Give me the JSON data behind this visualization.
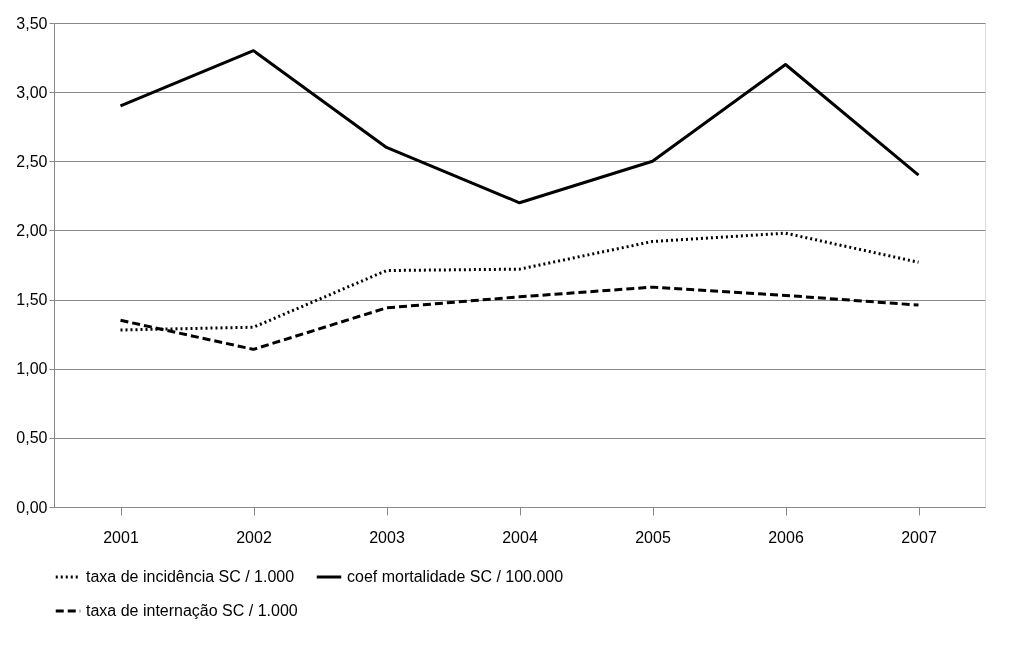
{
  "chart_data": {
    "type": "line",
    "categories": [
      "2001",
      "2002",
      "2003",
      "2004",
      "2005",
      "2006",
      "2007"
    ],
    "series": [
      {
        "name": "taxa de incidência SC / 1.000",
        "color": "#000000",
        "line_style": "dotted",
        "values": [
          1.28,
          1.3,
          1.71,
          1.72,
          1.92,
          1.98,
          1.77
        ]
      },
      {
        "name": "coef mortalidade  SC / 100.000",
        "color": "#000000",
        "line_style": "solid",
        "values": [
          2.9,
          3.3,
          2.6,
          2.2,
          2.5,
          3.2,
          2.4
        ]
      },
      {
        "name": "taxa de internação SC / 1.000",
        "color": "#000000",
        "line_style": "dashed",
        "values": [
          1.35,
          1.14,
          1.44,
          1.52,
          1.59,
          1.53,
          1.46
        ]
      }
    ],
    "ylim": [
      0,
      3.5
    ],
    "yticks": [
      {
        "value": 0,
        "label": "0,00"
      },
      {
        "value": 0.5,
        "label": "0,50"
      },
      {
        "value": 1,
        "label": "1,00"
      },
      {
        "value": 1.5,
        "label": "1,50"
      },
      {
        "value": 2,
        "label": "2,00"
      },
      {
        "value": 2.5,
        "label": "2,50"
      },
      {
        "value": 3,
        "label": "3,00"
      },
      {
        "value": 3.5,
        "label": "3,50"
      }
    ],
    "grid": "y",
    "legend": "bottom",
    "marker": "none"
  }
}
